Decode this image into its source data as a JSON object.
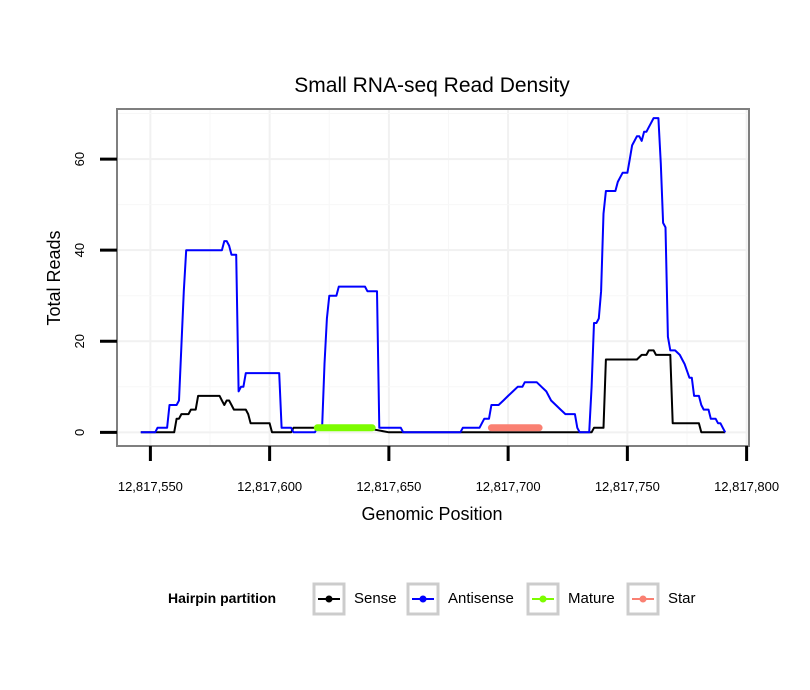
{
  "chart_data": {
    "type": "line",
    "title": "Small RNA-seq Read Density",
    "xlabel": "Genomic Position",
    "ylabel": "Total Reads",
    "xlim": [
      12817536,
      12817801
    ],
    "ylim": [
      -3,
      71
    ],
    "x_ticks": [
      12817550,
      12817600,
      12817650,
      12817700,
      12817750,
      12817800
    ],
    "x_tick_labels": [
      "12,817,550",
      "12,817,600",
      "12,817,650",
      "12,817,700",
      "12,817,750",
      "12,817,800"
    ],
    "y_ticks": [
      0,
      20,
      40,
      60
    ],
    "y_tick_labels": [
      "0",
      "20",
      "40",
      "60"
    ],
    "grid": true,
    "legend": {
      "title": "Hairpin partition",
      "position": "bottom",
      "entries": [
        "Sense",
        "Antisense",
        "Mature",
        "Star"
      ]
    },
    "series": [
      {
        "name": "Sense",
        "color": "#000000",
        "points": [
          [
            12817546,
            0
          ],
          [
            12817560,
            0
          ],
          [
            12817561,
            3
          ],
          [
            12817562,
            3
          ],
          [
            12817563,
            4
          ],
          [
            12817566,
            4
          ],
          [
            12817567,
            5
          ],
          [
            12817569,
            5
          ],
          [
            12817570,
            8
          ],
          [
            12817579,
            8
          ],
          [
            12817580,
            7
          ],
          [
            12817581,
            6
          ],
          [
            12817582,
            7
          ],
          [
            12817583,
            7
          ],
          [
            12817584,
            6
          ],
          [
            12817585,
            5
          ],
          [
            12817590,
            5
          ],
          [
            12817591,
            4
          ],
          [
            12817592,
            2
          ],
          [
            12817600,
            2
          ],
          [
            12817601,
            0
          ],
          [
            12817609,
            0
          ],
          [
            12817610,
            1
          ],
          [
            12817634,
            1
          ],
          [
            12817640,
            1
          ],
          [
            12817650,
            0
          ],
          [
            12817660,
            0
          ],
          [
            12817735,
            0
          ],
          [
            12817736,
            1
          ],
          [
            12817740,
            1
          ],
          [
            12817741,
            16
          ],
          [
            12817754,
            16
          ],
          [
            12817756,
            17
          ],
          [
            12817758,
            17
          ],
          [
            12817759,
            18
          ],
          [
            12817761,
            18
          ],
          [
            12817762,
            17
          ],
          [
            12817768,
            17
          ],
          [
            12817769,
            2
          ],
          [
            12817780,
            2
          ],
          [
            12817781,
            0
          ],
          [
            12817791,
            0
          ]
        ]
      },
      {
        "name": "Antisense",
        "color": "#0000ff",
        "points": [
          [
            12817546,
            0
          ],
          [
            12817552,
            0
          ],
          [
            12817553,
            1
          ],
          [
            12817557,
            1
          ],
          [
            12817558,
            6
          ],
          [
            12817561,
            6
          ],
          [
            12817562,
            7
          ],
          [
            12817563,
            19
          ],
          [
            12817564,
            31
          ],
          [
            12817565,
            40
          ],
          [
            12817580,
            40
          ],
          [
            12817581,
            42
          ],
          [
            12817582,
            42
          ],
          [
            12817583,
            41
          ],
          [
            12817584,
            39
          ],
          [
            12817586,
            39
          ],
          [
            12817587,
            9
          ],
          [
            12817588,
            10
          ],
          [
            12817589,
            10
          ],
          [
            12817590,
            13
          ],
          [
            12817604,
            13
          ],
          [
            12817605,
            1
          ],
          [
            12817609,
            1
          ],
          [
            12817610,
            0
          ],
          [
            12817619,
            0
          ],
          [
            12817620,
            1
          ],
          [
            12817622,
            1
          ],
          [
            12817623,
            15
          ],
          [
            12817624,
            25
          ],
          [
            12817625,
            30
          ],
          [
            12817628,
            30
          ],
          [
            12817629,
            32
          ],
          [
            12817640,
            32
          ],
          [
            12817641,
            31
          ],
          [
            12817645,
            31
          ],
          [
            12817646,
            1
          ],
          [
            12817655,
            1
          ],
          [
            12817656,
            0
          ],
          [
            12817680,
            0
          ],
          [
            12817681,
            1
          ],
          [
            12817688,
            1
          ],
          [
            12817689,
            2
          ],
          [
            12817690,
            3
          ],
          [
            12817692,
            3
          ],
          [
            12817693,
            6
          ],
          [
            12817696,
            6
          ],
          [
            12817698,
            7
          ],
          [
            12817700,
            8
          ],
          [
            12817702,
            9
          ],
          [
            12817704,
            10
          ],
          [
            12817706,
            10
          ],
          [
            12817707,
            11
          ],
          [
            12817710,
            11
          ],
          [
            12817712,
            11
          ],
          [
            12817714,
            10
          ],
          [
            12817716,
            9
          ],
          [
            12817718,
            7
          ],
          [
            12817720,
            6
          ],
          [
            12817722,
            5
          ],
          [
            12817724,
            4
          ],
          [
            12817726,
            4
          ],
          [
            12817728,
            4
          ],
          [
            12817729,
            1
          ],
          [
            12817730,
            0
          ],
          [
            12817734,
            0
          ],
          [
            12817735,
            10
          ],
          [
            12817736,
            24
          ],
          [
            12817737,
            24
          ],
          [
            12817738,
            25
          ],
          [
            12817739,
            31
          ],
          [
            12817740,
            48
          ],
          [
            12817741,
            53
          ],
          [
            12817745,
            53
          ],
          [
            12817746,
            55
          ],
          [
            12817747,
            56
          ],
          [
            12817748,
            57
          ],
          [
            12817750,
            57
          ],
          [
            12817751,
            60
          ],
          [
            12817752,
            63
          ],
          [
            12817753,
            64
          ],
          [
            12817754,
            65
          ],
          [
            12817755,
            65
          ],
          [
            12817756,
            64
          ],
          [
            12817757,
            66
          ],
          [
            12817758,
            66
          ],
          [
            12817759,
            67
          ],
          [
            12817760,
            68
          ],
          [
            12817761,
            69
          ],
          [
            12817763,
            69
          ],
          [
            12817764,
            59
          ],
          [
            12817765,
            46
          ],
          [
            12817766,
            45
          ],
          [
            12817767,
            21
          ],
          [
            12817768,
            18
          ],
          [
            12817770,
            18
          ],
          [
            12817772,
            17
          ],
          [
            12817773,
            16
          ],
          [
            12817774,
            15
          ],
          [
            12817776,
            12
          ],
          [
            12817777,
            12
          ],
          [
            12817778,
            8
          ],
          [
            12817780,
            8
          ],
          [
            12817781,
            6
          ],
          [
            12817782,
            5
          ],
          [
            12817784,
            5
          ],
          [
            12817785,
            3
          ],
          [
            12817787,
            3
          ],
          [
            12817788,
            2
          ],
          [
            12817789,
            2
          ],
          [
            12817790,
            1
          ],
          [
            12817791,
            0
          ]
        ]
      },
      {
        "name": "Mature",
        "color": "#7cfc00",
        "points": [
          [
            12817620,
            1
          ],
          [
            12817643,
            1
          ]
        ]
      },
      {
        "name": "Star",
        "color": "#fa8072",
        "points": [
          [
            12817693,
            1
          ],
          [
            12817713,
            1
          ]
        ]
      }
    ]
  }
}
